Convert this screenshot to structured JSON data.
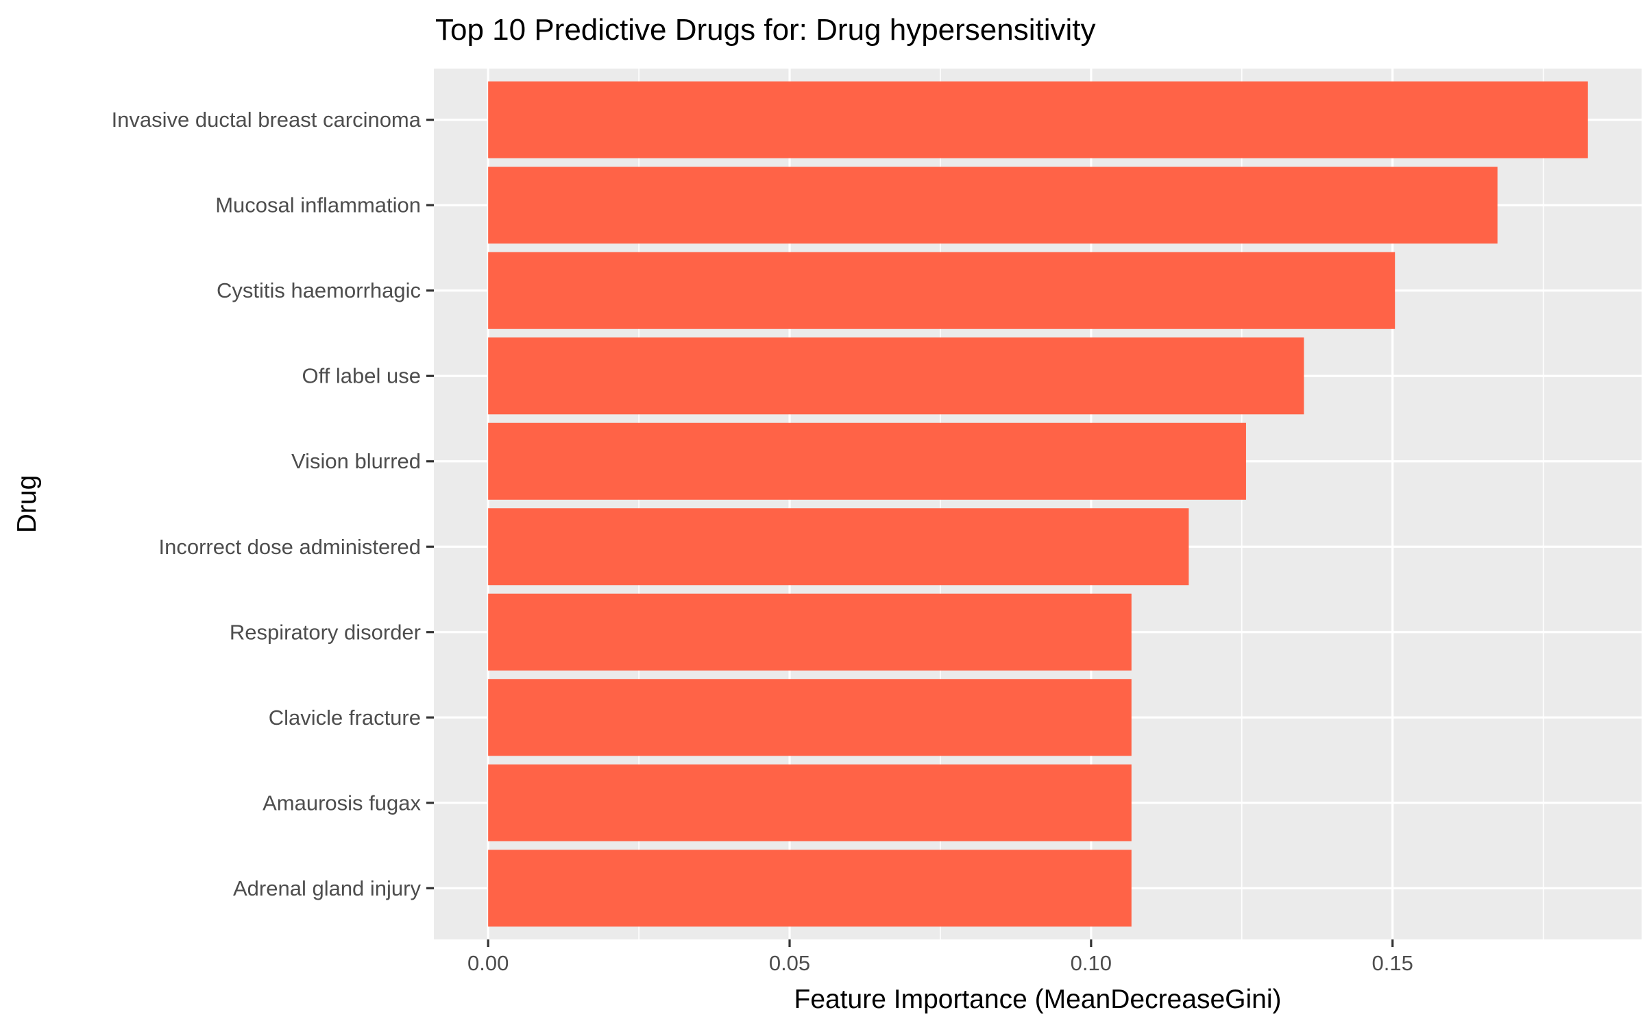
{
  "chart_data": {
    "type": "bar",
    "orientation": "horizontal",
    "title": "Top 10 Predictive Drugs for: Drug hypersensitivity",
    "xlabel": "Feature Importance (MeanDecreaseGini)",
    "ylabel": "Drug",
    "categories": [
      "Invasive ductal breast carcinoma",
      "Mucosal inflammation",
      "Cystitis haemorrhagic",
      "Off label use",
      "Vision blurred",
      "Incorrect dose administered",
      "Respiratory disorder",
      "Clavicle fracture",
      "Amaurosis fugax",
      "Adrenal gland injury"
    ],
    "values": [
      0.1824,
      0.1674,
      0.1504,
      0.1353,
      0.1257,
      0.1162,
      0.1067,
      0.1067,
      0.1067,
      0.1067
    ],
    "xlim": [
      -0.009,
      0.1913
    ],
    "xticks": [
      0.0,
      0.05,
      0.1,
      0.15
    ],
    "xtick_labels": [
      "0.00",
      "0.05",
      "0.10",
      "0.15"
    ],
    "grid": true,
    "legend": "none",
    "colors": {
      "bar": "#FF6347",
      "panel": "#EBEBEB",
      "grid_major": "#FFFFFF",
      "text": "#000000",
      "tick_text": "#4D4D4D",
      "tick_mark": "#333333"
    }
  }
}
